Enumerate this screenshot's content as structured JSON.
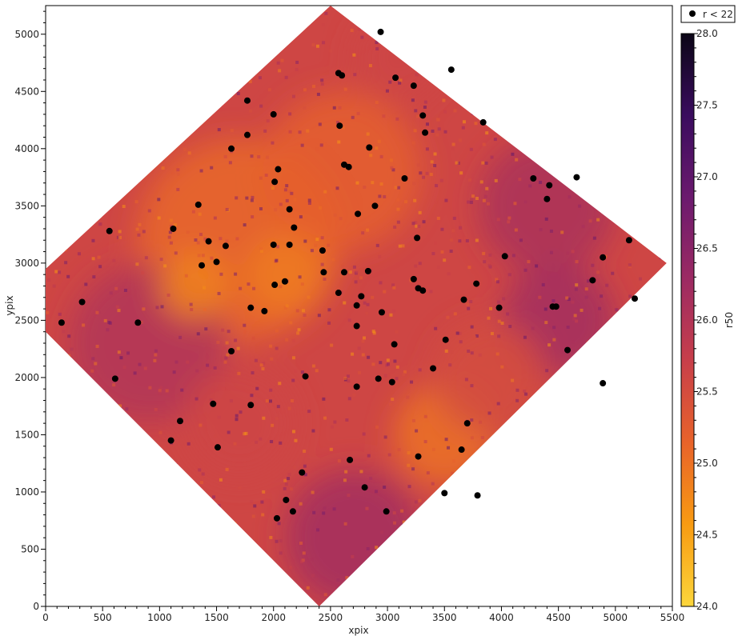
{
  "chart_data": {
    "type": "heatmap",
    "xlabel": "xpix",
    "ylabel": "ypix",
    "xlim": [
      0,
      5500
    ],
    "ylim": [
      0,
      5250
    ],
    "xticks": [
      0,
      500,
      1000,
      1500,
      2000,
      2500,
      3000,
      3500,
      4000,
      4500,
      5000,
      5500
    ],
    "yticks": [
      0,
      500,
      1000,
      1500,
      2000,
      2500,
      3000,
      3500,
      4000,
      4500,
      5000
    ],
    "colorbar": {
      "label": "r50",
      "range": [
        24.0,
        28.0
      ],
      "ticks": [
        "24.0",
        "24.5",
        "25.0",
        "25.5",
        "26.0",
        "26.5",
        "27.0",
        "27.5",
        "28.0"
      ],
      "colormap": "inferno_r",
      "stops": [
        "#fcd63c",
        "#f89b12",
        "#e8632a",
        "#c83f4a",
        "#9c2a63",
        "#6b1a6e",
        "#3a0c5e",
        "#0b0616"
      ]
    },
    "footprint": [
      [
        2400,
        0
      ],
      [
        5450,
        3000
      ],
      [
        2500,
        5250
      ],
      [
        0,
        2950
      ],
      [
        0,
        2400
      ]
    ],
    "smooth_patches": [
      {
        "x": 1700,
        "y": 3200,
        "r": 900,
        "value": 25.1
      },
      {
        "x": 2600,
        "y": 3800,
        "r": 700,
        "value": 25.2
      },
      {
        "x": 3500,
        "y": 1500,
        "r": 450,
        "value": 25.0
      },
      {
        "x": 4400,
        "y": 3500,
        "r": 600,
        "value": 26.1
      },
      {
        "x": 4500,
        "y": 2500,
        "r": 500,
        "value": 26.2
      },
      {
        "x": 900,
        "y": 2300,
        "r": 700,
        "value": 26.0
      },
      {
        "x": 2700,
        "y": 600,
        "r": 600,
        "value": 26.2
      },
      {
        "x": 1700,
        "y": 1600,
        "r": 500,
        "value": 25.6
      },
      {
        "x": 3900,
        "y": 2000,
        "r": 500,
        "value": 25.5
      },
      {
        "x": 3100,
        "y": 4800,
        "r": 400,
        "value": 25.6
      },
      {
        "x": 2100,
        "y": 2900,
        "r": 350,
        "value": 24.9
      },
      {
        "x": 1300,
        "y": 2800,
        "r": 300,
        "value": 24.8
      }
    ],
    "legend": {
      "label": "r < 22",
      "placement": "top-right"
    },
    "series": [
      {
        "name": "r < 22",
        "marker": "circle",
        "color": "#000000",
        "points": [
          [
            2940,
            5020
          ],
          [
            2570,
            4660
          ],
          [
            2600,
            4640
          ],
          [
            3070,
            4620
          ],
          [
            3230,
            4550
          ],
          [
            3560,
            4690
          ],
          [
            1770,
            4420
          ],
          [
            2000,
            4300
          ],
          [
            3310,
            4290
          ],
          [
            2580,
            4200
          ],
          [
            3840,
            4230
          ],
          [
            1770,
            4120
          ],
          [
            3330,
            4140
          ],
          [
            1630,
            4000
          ],
          [
            2840,
            4010
          ],
          [
            2620,
            3860
          ],
          [
            2660,
            3840
          ],
          [
            2040,
            3820
          ],
          [
            3150,
            3740
          ],
          [
            2010,
            3710
          ],
          [
            4280,
            3740
          ],
          [
            4420,
            3680
          ],
          [
            4660,
            3750
          ],
          [
            4400,
            3560
          ],
          [
            1340,
            3510
          ],
          [
            2140,
            3470
          ],
          [
            2890,
            3500
          ],
          [
            2740,
            3430
          ],
          [
            560,
            3280
          ],
          [
            1120,
            3300
          ],
          [
            2180,
            3310
          ],
          [
            1430,
            3190
          ],
          [
            3260,
            3220
          ],
          [
            5120,
            3200
          ],
          [
            1580,
            3150
          ],
          [
            2000,
            3160
          ],
          [
            2140,
            3160
          ],
          [
            2430,
            3110
          ],
          [
            4030,
            3060
          ],
          [
            1500,
            3010
          ],
          [
            1370,
            2980
          ],
          [
            4890,
            3050
          ],
          [
            2440,
            2920
          ],
          [
            2620,
            2920
          ],
          [
            2830,
            2930
          ],
          [
            3230,
            2860
          ],
          [
            2010,
            2810
          ],
          [
            2100,
            2840
          ],
          [
            4800,
            2850
          ],
          [
            3780,
            2820
          ],
          [
            3270,
            2780
          ],
          [
            3310,
            2760
          ],
          [
            2570,
            2740
          ],
          [
            2770,
            2710
          ],
          [
            3670,
            2680
          ],
          [
            5170,
            2690
          ],
          [
            320,
            2660
          ],
          [
            2730,
            2630
          ],
          [
            4450,
            2620
          ],
          [
            4480,
            2620
          ],
          [
            1800,
            2610
          ],
          [
            3980,
            2610
          ],
          [
            1920,
            2580
          ],
          [
            2950,
            2570
          ],
          [
            140,
            2480
          ],
          [
            810,
            2480
          ],
          [
            2730,
            2450
          ],
          [
            3060,
            2290
          ],
          [
            3510,
            2330
          ],
          [
            1630,
            2230
          ],
          [
            4580,
            2240
          ],
          [
            3400,
            2080
          ],
          [
            610,
            1990
          ],
          [
            2280,
            2010
          ],
          [
            2920,
            1990
          ],
          [
            3040,
            1960
          ],
          [
            4890,
            1950
          ],
          [
            2730,
            1920
          ],
          [
            1470,
            1770
          ],
          [
            1800,
            1760
          ],
          [
            1180,
            1620
          ],
          [
            3700,
            1600
          ],
          [
            1100,
            1450
          ],
          [
            1510,
            1390
          ],
          [
            3650,
            1370
          ],
          [
            3270,
            1310
          ],
          [
            2670,
            1280
          ],
          [
            2250,
            1170
          ],
          [
            2800,
            1040
          ],
          [
            3500,
            990
          ],
          [
            3790,
            970
          ],
          [
            2110,
            930
          ],
          [
            2170,
            830
          ],
          [
            2990,
            830
          ],
          [
            2030,
            770
          ]
        ]
      }
    ]
  }
}
